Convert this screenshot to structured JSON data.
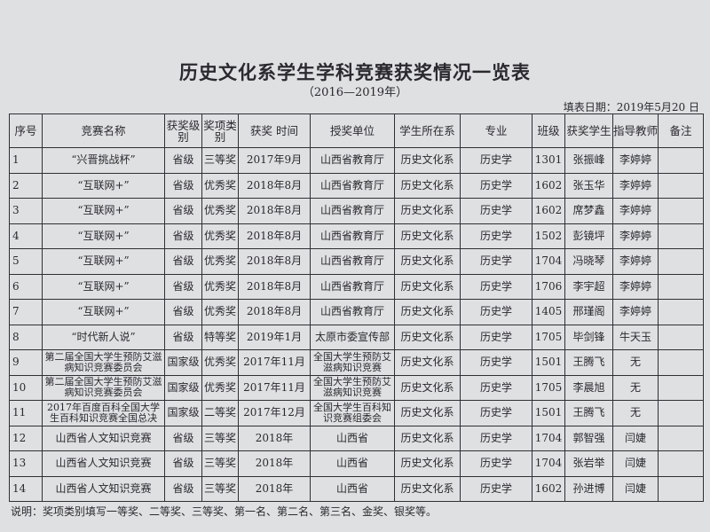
{
  "title": "历史文化系学生学科竞赛获奖情况一览表",
  "subtitle": "（2016—2019年）",
  "fill_date": "填表日期：2019年5月20 日",
  "headers": [
    "序号",
    "竞赛名称",
    "获奖级别",
    "奖项类别",
    "获奖 时间",
    "授奖单位",
    "学生所在系",
    "专业",
    "班级",
    "获奖学生",
    "指导教师",
    "备注"
  ],
  "rows": [
    [
      "1",
      "“兴晋挑战杯”",
      "省级",
      "三等奖",
      "2017年9月",
      "山西省教育厅",
      "历史文化系",
      "历史学",
      "1301",
      "张振峰",
      "李婷婷",
      ""
    ],
    [
      "2",
      "“互联网+”",
      "省级",
      "优秀奖",
      "2018年8月",
      "山西省教育厅",
      "历史文化系",
      "历史学",
      "1602",
      "张玉华",
      "李婷婷",
      ""
    ],
    [
      "3",
      "“互联网+”",
      "省级",
      "优秀奖",
      "2018年8月",
      "山西省教育厅",
      "历史文化系",
      "历史学",
      "1602",
      "席梦鑫",
      "李婷婷",
      ""
    ],
    [
      "4",
      "“互联网+”",
      "省级",
      "优秀奖",
      "2018年8月",
      "山西省教育厅",
      "历史文化系",
      "历史学",
      "1502",
      "彭镜坪",
      "李婷婷",
      ""
    ],
    [
      "5",
      "“互联网+”",
      "省级",
      "优秀奖",
      "2018年8月",
      "山西省教育厅",
      "历史文化系",
      "历史学",
      "1704",
      "冯晓琴",
      "李婷婷",
      ""
    ],
    [
      "6",
      "“互联网+”",
      "省级",
      "优秀奖",
      "2018年8月",
      "山西省教育厅",
      "历史文化系",
      "历史学",
      "1706",
      "李宇超",
      "李婷婷",
      ""
    ],
    [
      "7",
      "“互联网+”",
      "省级",
      "优秀奖",
      "2018年8月",
      "山西省教育厅",
      "历史文化系",
      "历史学",
      "1405",
      "邢瑾阁",
      "李婷婷",
      ""
    ],
    [
      "8",
      "“时代新人说”",
      "省级",
      "特等奖",
      "2019年1月",
      "太原市委宣传部",
      "历史文化系",
      "历史学",
      "1705",
      "毕剑锋",
      "牛天玉",
      ""
    ],
    [
      "9",
      "第二届全国大学生预防艾滋病知识竞赛委员会",
      "国家级",
      "优秀奖",
      "2017年11月",
      "全国大学生预防艾滋病知识竞赛",
      "历史文化系",
      "历史学",
      "1501",
      "王腾飞",
      "无",
      ""
    ],
    [
      "10",
      "第二届全国大学生预防艾滋病知识竞赛委员会",
      "国家级",
      "优秀奖",
      "2017年11月",
      "全国大学生预防艾滋病知识竞赛",
      "历史文化系",
      "历史学",
      "1705",
      "李晨旭",
      "无",
      ""
    ],
    [
      "11",
      "2017年百度百科全国大学生百科知识竞赛全国总决",
      "国家级",
      "二等奖",
      "2017年12月",
      "全国大学生百科知识竞赛组委会",
      "历史文化系",
      "历史学",
      "1501",
      "王腾飞",
      "无",
      ""
    ],
    [
      "12",
      "山西省人文知识竞赛",
      "省级",
      "三等奖",
      "2018年",
      "山西省",
      "历史文化系",
      "历史学",
      "1704",
      "郭智强",
      "闫婕",
      ""
    ],
    [
      "13",
      "山西省人文知识竞赛",
      "省级",
      "三等奖",
      "2018年",
      "山西省",
      "历史文化系",
      "历史学",
      "1704",
      "张岩举",
      "闫婕",
      ""
    ],
    [
      "14",
      "山西省人文知识竞赛",
      "省级",
      "三等奖",
      "2018年",
      "山西省",
      "历史文化系",
      "历史学",
      "1602",
      "孙进博",
      "闫婕",
      ""
    ]
  ],
  "note": "说明：奖项类别填写一等奖、二等奖、三等奖、第一名、第二名、第三名、金奖、银奖等。"
}
